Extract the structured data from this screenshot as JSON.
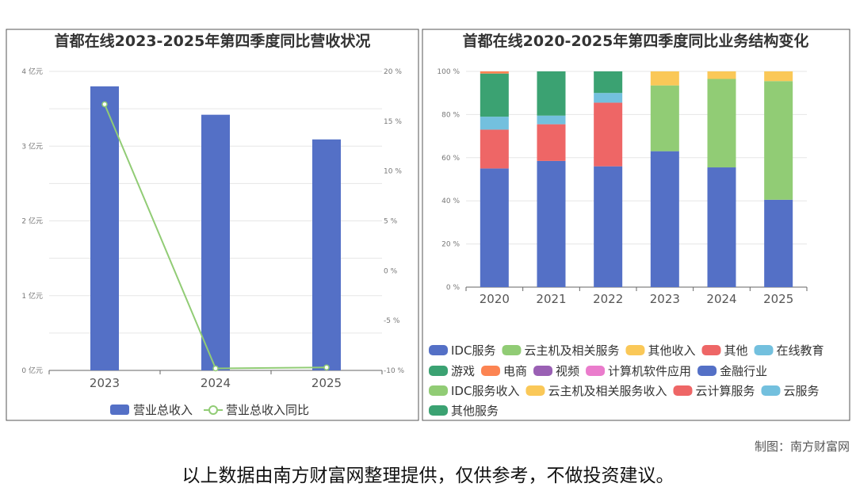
{
  "chart_data": [
    {
      "type": "bar+line",
      "title": "首都在线2023-2025年第四季度同比营收状况",
      "categories": [
        "2023",
        "2024",
        "2025"
      ],
      "series": [
        {
          "name": "营业总收入",
          "type": "bar",
          "axis": "left",
          "values": [
            3.8,
            3.42,
            3.09
          ],
          "color": "#5470c6"
        },
        {
          "name": "营业总收入同比",
          "type": "line",
          "axis": "right",
          "values": [
            16.7,
            -9.8,
            -9.7
          ],
          "color": "#91cc75"
        }
      ],
      "y_left": {
        "ylim": [
          0,
          4
        ],
        "ticks": [
          "0 亿元",
          "1 亿元",
          "2 亿元",
          "3 亿元",
          "4 亿元"
        ]
      },
      "y_right": {
        "ylim": [
          -10,
          20
        ],
        "ticks": [
          "-10 %",
          "-5 %",
          "0 %",
          "5 %",
          "10 %",
          "15 %",
          "20 %"
        ]
      },
      "grid": true,
      "legend_position": "bottom"
    },
    {
      "type": "stacked-bar",
      "title": "首都在线2020-2025年第四季度同比业务结构变化",
      "categories": [
        "2020",
        "2021",
        "2022",
        "2023",
        "2024",
        "2025"
      ],
      "ylim": [
        0,
        100
      ],
      "y_ticks": [
        "0 %",
        "20 %",
        "40 %",
        "60 %",
        "80 %",
        "100 %"
      ],
      "series": [
        {
          "name": "IDC服务",
          "color": "#5470c6",
          "values": [
            55,
            58.5,
            56,
            63,
            55.5,
            40.5
          ]
        },
        {
          "name": "其他",
          "color": "#ee6666",
          "values": [
            18,
            17,
            29.5,
            0,
            0,
            0
          ]
        },
        {
          "name": "在线教育",
          "color": "#73c0de",
          "values": [
            6,
            4,
            4.5,
            0,
            0,
            0
          ]
        },
        {
          "name": "游戏",
          "color": "#3ba272",
          "values": [
            20,
            20.5,
            10,
            0,
            0,
            0
          ]
        },
        {
          "name": "电商",
          "color": "#fc8452",
          "values": [
            1,
            0,
            0,
            0,
            0,
            0
          ]
        },
        {
          "name": "云主机及相关服务",
          "color": "#91cc75",
          "values": [
            0,
            0,
            0,
            30.5,
            41,
            55
          ]
        },
        {
          "name": "其他收入",
          "color": "#fac858",
          "values": [
            0,
            0,
            0,
            6.5,
            3.5,
            4.5
          ]
        }
      ],
      "legend": [
        {
          "name": "IDC服务",
          "color": "#5470c6"
        },
        {
          "name": "云主机及相关服务",
          "color": "#91cc75"
        },
        {
          "name": "其他收入",
          "color": "#fac858"
        },
        {
          "name": "其他",
          "color": "#ee6666"
        },
        {
          "name": "在线教育",
          "color": "#73c0de"
        },
        {
          "name": "游戏",
          "color": "#3ba272"
        },
        {
          "name": "电商",
          "color": "#fc8452"
        },
        {
          "name": "视频",
          "color": "#9a60b4"
        },
        {
          "name": "计算机软件应用",
          "color": "#ea7ccc"
        },
        {
          "name": "金融行业",
          "color": "#5470c6"
        },
        {
          "name": "IDC服务收入",
          "color": "#91cc75"
        },
        {
          "name": "云主机及相关服务收入",
          "color": "#fac858"
        },
        {
          "name": "云计算服务",
          "color": "#ee6666"
        },
        {
          "name": "云服务",
          "color": "#73c0de"
        },
        {
          "name": "其他服务",
          "color": "#3ba272"
        }
      ],
      "grid": true,
      "legend_position": "bottom"
    }
  ],
  "footer": {
    "credit": "制图：南方财富网",
    "disclaimer": "以上数据由南方财富网整理提供，仅供参考，不做投资建议。"
  }
}
